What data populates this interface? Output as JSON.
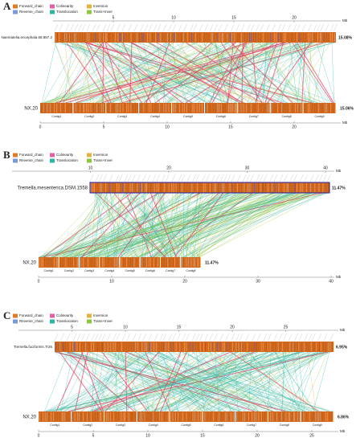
{
  "panels": [
    {
      "label": "A",
      "legend": [
        "Forward_chain",
        "Reverse_chain",
        "Colinearity",
        "Translocation",
        "Inversion",
        "Trans+Inver"
      ],
      "unit": "Mb",
      "top": {
        "name": "Naematelia.encephala.68.887.2",
        "percent": "15.08%",
        "ticks": [
          5,
          10,
          15,
          20
        ]
      },
      "bottom": {
        "name": "NX.20",
        "percent": "15.06%",
        "ticks": [
          0,
          5,
          10,
          15,
          20
        ],
        "contigs": [
          "Contig1",
          "Contig2",
          "Contig3",
          "Contig4",
          "Contig5",
          "Contig6",
          "Contig7",
          "Contig8",
          "Contig9"
        ]
      }
    },
    {
      "label": "B",
      "legend": [
        "Forward_chain",
        "Reverse_chain",
        "Colinearity",
        "Translocation",
        "Inversion",
        "Trans+Inver"
      ],
      "unit": "Mb",
      "top": {
        "name": "Tremella.mesenterica.DSM.1558",
        "percent": "11.47%",
        "ticks": [
          10,
          20,
          30,
          40
        ]
      },
      "bottom": {
        "name": "NX.20",
        "percent": "11.47%",
        "ticks": [
          0,
          10,
          20,
          30,
          40
        ],
        "contigs": [
          "Contig1",
          "Contig2",
          "Contig3",
          "Contig4",
          "Contig5",
          "Contig6",
          "Contig7",
          "Contig8"
        ]
      }
    },
    {
      "label": "C",
      "legend": [
        "Forward_chain",
        "Reverse_chain",
        "Colinearity",
        "Translocation",
        "Inversion",
        "Trans+Inver"
      ],
      "unit": "Mb",
      "top": {
        "name": "Tremella.fuciformis.Tr26",
        "percent": "6.95%",
        "ticks": [
          5,
          10,
          15,
          20,
          25
        ]
      },
      "bottom": {
        "name": "NX.20",
        "percent": "6.86%",
        "ticks": [
          0,
          5,
          10,
          15,
          20,
          25
        ],
        "contigs": [
          "Contig1",
          "Contig2",
          "Contig3",
          "Contig4",
          "Contig5",
          "Contig6",
          "Contig7",
          "Contig8",
          "Contig9"
        ]
      }
    }
  ]
}
